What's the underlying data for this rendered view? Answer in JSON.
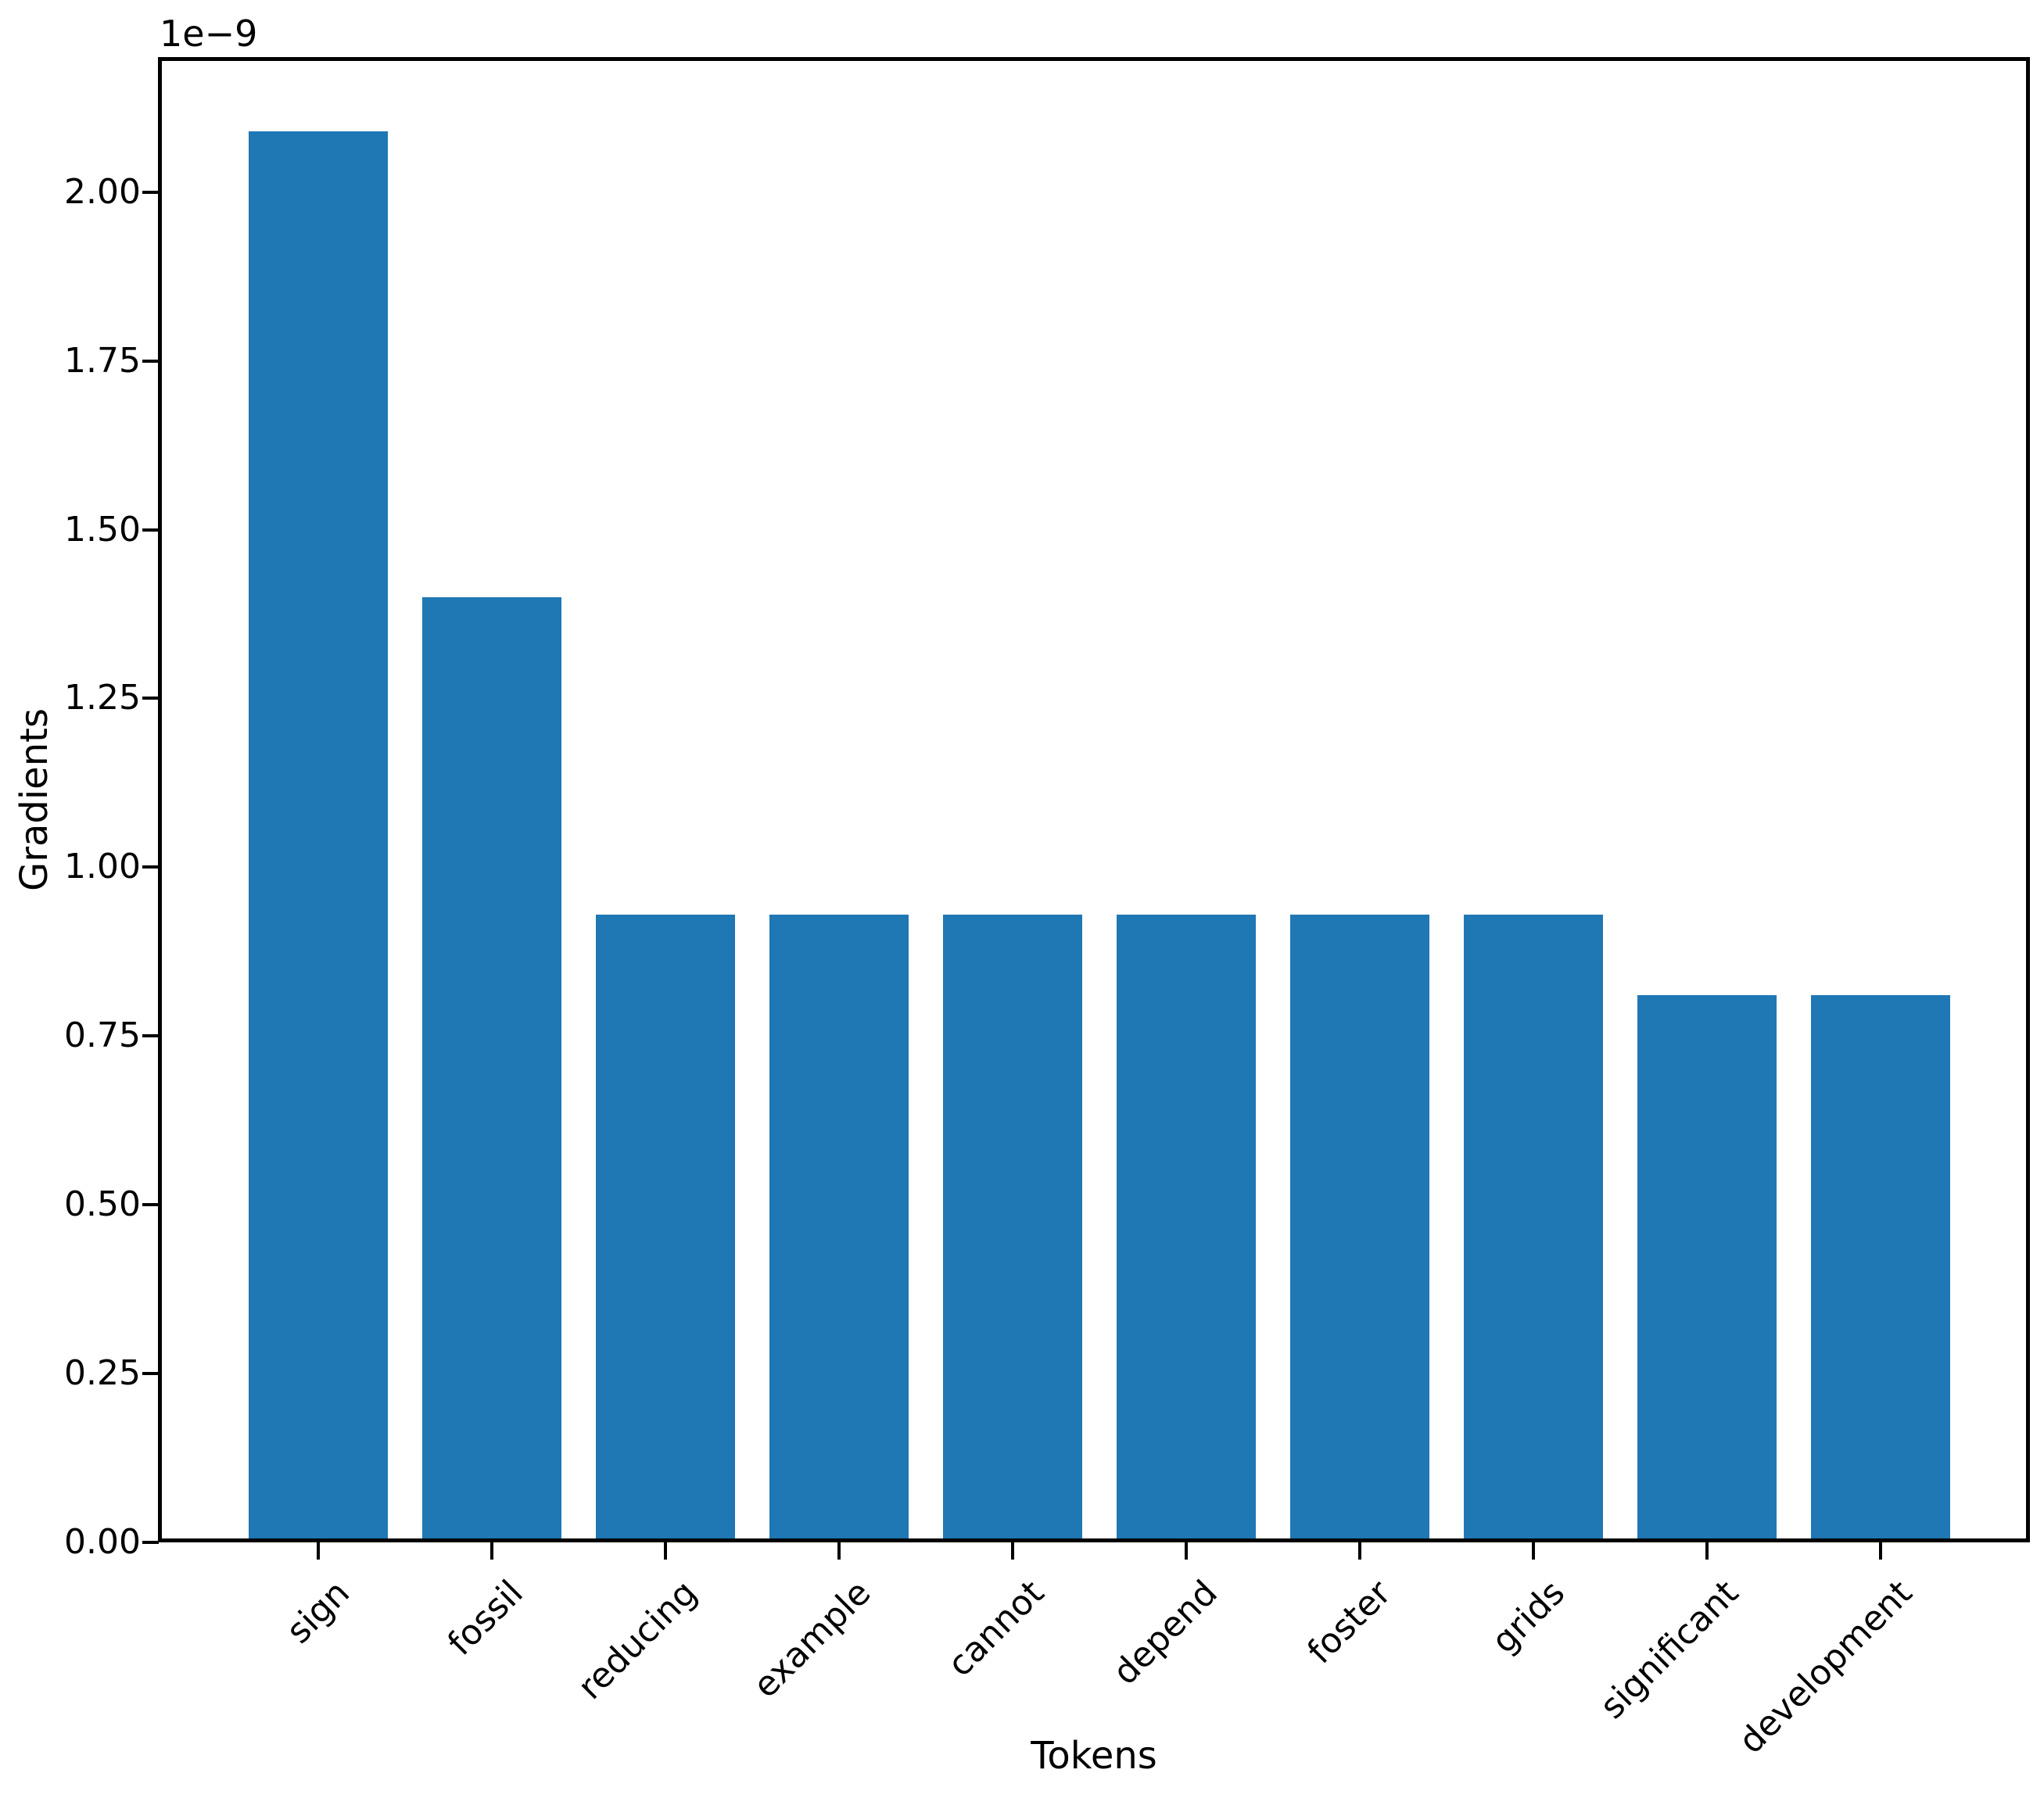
{
  "figure": {
    "background": "#ffffff",
    "text_color": "#000000"
  },
  "chart_data": {
    "type": "bar",
    "title": "",
    "xlabel": "Tokens",
    "ylabel": "Gradients",
    "offset_text": "1e−9",
    "value_scale": "1e-9",
    "categories": [
      "sign",
      "fossil",
      "reducing",
      "example",
      "cannot",
      "depend",
      "foster",
      "grids",
      "significant",
      "development"
    ],
    "values": [
      2.09,
      1.4,
      0.93,
      0.93,
      0.93,
      0.93,
      0.93,
      0.93,
      0.81,
      0.81
    ],
    "bar_color": "#1f77b4",
    "ylim": [
      0,
      2.2
    ],
    "yticks": [
      0.0,
      0.25,
      0.5,
      0.75,
      1.0,
      1.25,
      1.5,
      1.75,
      2.0
    ],
    "ytick_labels": [
      "0.00",
      "0.25",
      "0.50",
      "0.75",
      "1.00",
      "1.25",
      "1.50",
      "1.75",
      "2.00"
    ],
    "xtick_rotation": 45,
    "grid": false,
    "legend": null
  }
}
